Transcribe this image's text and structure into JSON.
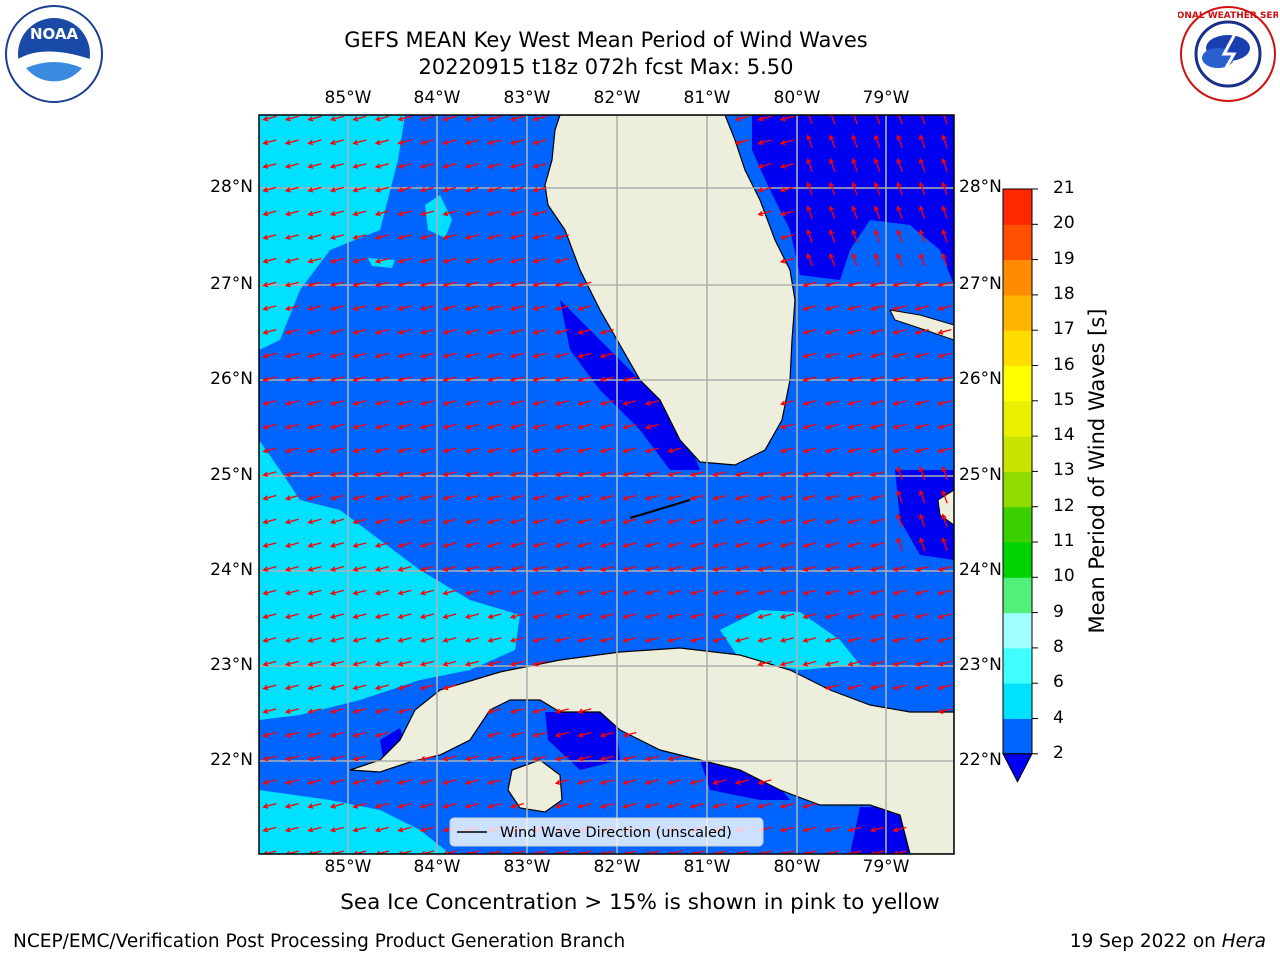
{
  "header": {
    "title_line1": "GEFS MEAN Key West Mean Period of Wind Waves",
    "title_line2": "20220915 t18z 072h fcst   Max: 5.50"
  },
  "logos": {
    "left": {
      "icon": "noaa-logo",
      "text": "NOAA"
    },
    "right": {
      "icon": "nws-logo",
      "text": "NATIONAL WEATHER SERVICE"
    }
  },
  "map": {
    "lon_labels": [
      "85°W",
      "84°W",
      "83°W",
      "82°W",
      "81°W",
      "80°W",
      "79°W"
    ],
    "lat_labels": [
      "28°N",
      "27°N",
      "26°N",
      "25°N",
      "24°N",
      "23°N",
      "22°N"
    ],
    "legend_label": "Wind Wave Direction (unscaled)",
    "wave_direction": "from east-northeast",
    "arrow_color": "#ff0000"
  },
  "colorbar": {
    "title": "Mean Period of Wind Waves [s]",
    "levels": [
      "2",
      "4",
      "6",
      "8",
      "9",
      "10",
      "11",
      "12",
      "13",
      "14",
      "15",
      "16",
      "17",
      "18",
      "19",
      "20",
      "21"
    ],
    "colors": [
      "#0000f0",
      "#0064ff",
      "#00e0ff",
      "#40ffff",
      "#a0ffff",
      "#52f07a",
      "#00d400",
      "#3cd000",
      "#90dc00",
      "#c8e400",
      "#e8f000",
      "#ffff00",
      "#ffdc00",
      "#ffb400",
      "#ff8c00",
      "#ff5000",
      "#ff2800",
      "#ff0000"
    ]
  },
  "notes": {
    "sea_ice": "Sea Ice Concentration > 15% is shown in pink to yellow"
  },
  "footer": {
    "left": "NCEP/EMC/Verification Post Processing Product Generation Branch",
    "right_prefix": "19 Sep 2022 on ",
    "right_host": "Hera"
  }
}
